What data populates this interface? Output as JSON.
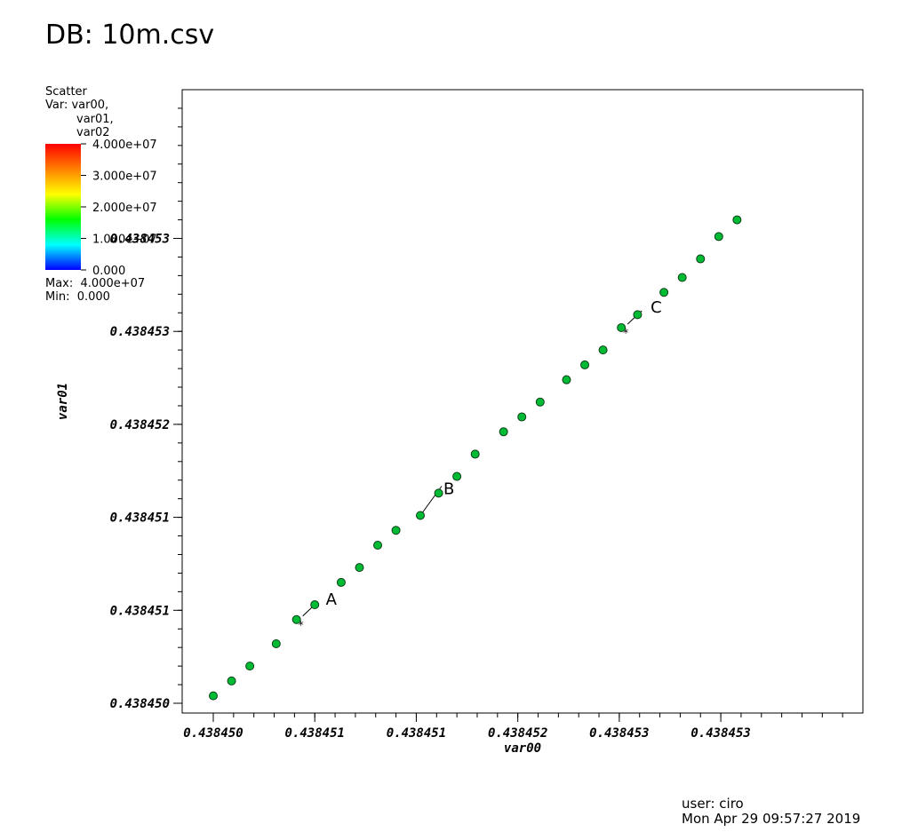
{
  "header": {
    "title": "DB: 10m.csv"
  },
  "legend": {
    "plot_name": "Scatter",
    "var_lines": [
      "Var: var00,",
      "var01,",
      "var02"
    ],
    "max_text": "Max:  4.000e+07",
    "min_text": "Min:  0.000",
    "colorbar_ticks": [
      "4.000e+07",
      "3.000e+07",
      "2.000e+07",
      "1.000e+07",
      "0.000"
    ],
    "colormap": [
      "#ff0000",
      "#ff8000",
      "#ffff00",
      "#00ff00",
      "#00ffff",
      "#0000ff"
    ]
  },
  "footer": {
    "user": "user: ciro",
    "datetime": "Mon Apr 29 09:57:27 2019"
  },
  "chart_data": {
    "type": "scatter",
    "xlabel": "var00",
    "ylabel": "var01",
    "xlim": [
      0.43845,
      0.4384532
    ],
    "ylim": [
      0.43845,
      0.4384533
    ],
    "x_ticks": [
      0.43845,
      0.4384505,
      0.438451,
      0.4384515,
      0.438452,
      0.4384525
    ],
    "x_tick_labels": [
      "0.438450",
      "0.438451",
      "0.438451",
      "0.438452",
      "0.438453",
      "0.438453"
    ],
    "y_ticks": [
      0.43845,
      0.4384505,
      0.438451,
      0.4384515,
      0.438452,
      0.4384525
    ],
    "y_tick_labels": [
      "0.438450",
      "0.438451",
      "0.438451",
      "0.438452",
      "0.438453",
      "0.438453"
    ],
    "point_color": "#00bb33",
    "points": [
      [
        0.43845,
        0.43845004
      ],
      [
        0.43845009,
        0.43845012
      ],
      [
        0.43845018,
        0.4384502
      ],
      [
        0.43845031,
        0.43845032
      ],
      [
        0.43845041,
        0.43845045
      ],
      [
        0.4384505,
        0.43845053
      ],
      [
        0.43845063,
        0.43845065
      ],
      [
        0.43845072,
        0.43845073
      ],
      [
        0.43845081,
        0.43845085
      ],
      [
        0.4384509,
        0.43845093
      ],
      [
        0.43845102,
        0.43845101
      ],
      [
        0.43845111,
        0.43845113
      ],
      [
        0.4384512,
        0.43845122
      ],
      [
        0.43845129,
        0.43845134
      ],
      [
        0.43845143,
        0.43845146
      ],
      [
        0.43845152,
        0.43845154
      ],
      [
        0.43845161,
        0.43845162
      ],
      [
        0.43845174,
        0.43845174
      ],
      [
        0.43845183,
        0.43845182
      ],
      [
        0.43845192,
        0.4384519
      ],
      [
        0.43845201,
        0.43845202
      ],
      [
        0.43845209,
        0.43845209
      ],
      [
        0.43845222,
        0.43845221
      ],
      [
        0.43845231,
        0.43845229
      ],
      [
        0.4384524,
        0.43845239
      ],
      [
        0.43845249,
        0.43845251
      ],
      [
        0.43845258,
        0.4384526
      ]
    ],
    "picks": [
      {
        "label": "A",
        "x": 0.43845041,
        "y": 0.43845045
      },
      {
        "label": "B",
        "x": 0.43845102,
        "y": 0.43845101
      },
      {
        "label": "C",
        "x": 0.43845201,
        "y": 0.43845202
      }
    ]
  }
}
